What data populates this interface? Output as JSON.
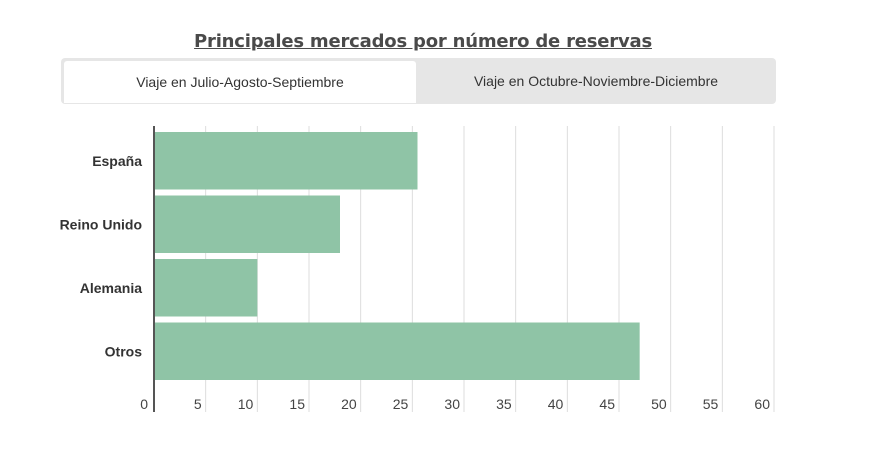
{
  "title": "Principales mercados por número de reservas",
  "tabs": [
    {
      "label": "Viaje en Julio-Agosto-Septiembre",
      "active": true
    },
    {
      "label": "Viaje en Octubre-Noviembre-Diciembre",
      "active": false
    }
  ],
  "colors": {
    "bar": "#8fc4a6",
    "grid": "#dddddd",
    "axis": "#555555",
    "tab_bg": "#e6e6e6",
    "tab_active": "#ffffff"
  },
  "chart_data": {
    "type": "bar",
    "orientation": "horizontal",
    "title": "Principales mercados por número de reservas",
    "categories": [
      "España",
      "Reino Unido",
      "Alemania",
      "Otros"
    ],
    "values": [
      25.5,
      18,
      10,
      47
    ],
    "xlim": [
      0,
      60
    ],
    "xticks": [
      0,
      5,
      10,
      15,
      20,
      25,
      30,
      35,
      40,
      45,
      50,
      55,
      60
    ],
    "xlabel": "",
    "ylabel": "",
    "grid": true,
    "legend": "none"
  }
}
